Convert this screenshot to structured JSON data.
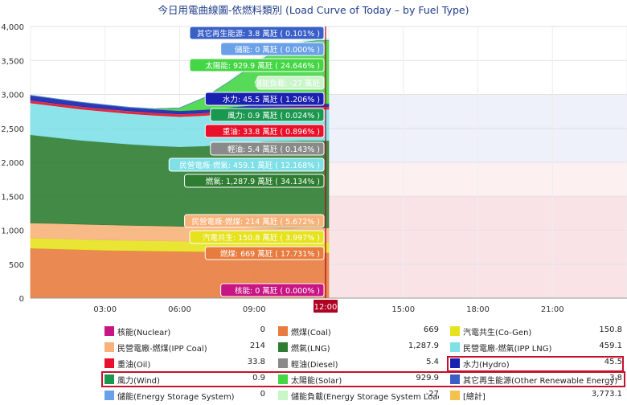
{
  "title": "今日用電曲線圖-依燃料類別 (Load Curve of Today – by Fuel Type)",
  "chart_data": {
    "type": "area",
    "stacked": true,
    "title": "今日用電曲線圖-依燃料類別 (Load Curve of Today – by Fuel Type)",
    "y_unit": "萬瓩",
    "ylim": [
      0,
      4000
    ],
    "y_ticks": [
      "0",
      "500",
      "1,000",
      "1,500",
      "2,000",
      "2,500",
      "3,000",
      "3,500",
      "4,000"
    ],
    "x_range_hours": [
      0,
      24
    ],
    "x_ticks": [
      "03:00",
      "06:00",
      "09:00",
      "12:00",
      "15:00",
      "18:00",
      "21:00"
    ],
    "current_time_label": "12:00",
    "x_hours": [
      0,
      1,
      2,
      3,
      4,
      5,
      6,
      7,
      8,
      9,
      9.5,
      10,
      10.5,
      11,
      11.5,
      12
    ],
    "series": [
      {
        "name": "核能(Nuclear)",
        "color": "#c71585",
        "values": [
          0,
          0,
          0,
          0,
          0,
          0,
          0,
          0,
          0,
          0,
          0,
          0,
          0,
          0,
          0,
          0
        ]
      },
      {
        "name": "燃煤(Coal)",
        "color": "#e87c3e",
        "values": [
          735,
          725,
          715,
          705,
          700,
          695,
          690,
          685,
          678,
          672,
          670,
          668,
          668,
          669,
          669,
          669
        ]
      },
      {
        "name": "汽電共生(Co-Gen)",
        "color": "#e6e21e",
        "values": [
          150,
          150,
          150,
          150,
          150,
          150,
          150,
          150,
          150,
          150,
          150,
          150,
          150,
          151,
          151,
          151
        ]
      },
      {
        "name": "民營電廠-燃煤(IPP Coal)",
        "color": "#f7b27a",
        "values": [
          220,
          225,
          225,
          225,
          222,
          220,
          218,
          215,
          215,
          214,
          214,
          214,
          214,
          214,
          214,
          214
        ]
      },
      {
        "name": "燃氣(LNG)",
        "color": "#2e7d32",
        "values": [
          1300,
          1265,
          1235,
          1215,
          1195,
          1180,
          1170,
          1190,
          1225,
          1265,
          1278,
          1282,
          1285,
          1287,
          1288,
          1288
        ]
      },
      {
        "name": "民營電廠-燃氣(IPP LNG)",
        "color": "#7fe0e8",
        "values": [
          470,
          465,
          460,
          455,
          450,
          448,
          445,
          450,
          455,
          458,
          459,
          459,
          459,
          459,
          459,
          459
        ]
      },
      {
        "name": "重油(Oil)",
        "color": "#e8102a",
        "values": [
          34,
          34,
          34,
          34,
          34,
          34,
          34,
          34,
          34,
          34,
          34,
          34,
          34,
          34,
          34,
          34
        ]
      },
      {
        "name": "輕油(Diesel)",
        "color": "#8a8a8a",
        "values": [
          5,
          5,
          5,
          5,
          5,
          5,
          5,
          5,
          5,
          5,
          5,
          5,
          5,
          5,
          5,
          5
        ]
      },
      {
        "name": "水力(Hydro)",
        "color": "#1a20b0",
        "values": [
          70,
          65,
          60,
          55,
          50,
          48,
          46,
          45,
          45,
          45,
          45,
          45,
          45,
          45,
          45,
          45
        ]
      },
      {
        "name": "風力(Wind)",
        "color": "#1a9850",
        "values": [
          1,
          1,
          1,
          1,
          1,
          1,
          1,
          1,
          1,
          1,
          1,
          1,
          1,
          1,
          1,
          1
        ]
      },
      {
        "name": "太陽能(Solar)",
        "color": "#45d645",
        "values": [
          0,
          0,
          0,
          0,
          0,
          5,
          40,
          180,
          380,
          600,
          700,
          800,
          860,
          905,
          925,
          930
        ]
      },
      {
        "name": "其它再生能源(Other Renewable Energy)",
        "color": "#3a60c8",
        "values": [
          4,
          4,
          4,
          4,
          4,
          4,
          4,
          4,
          4,
          4,
          4,
          4,
          4,
          4,
          4,
          4
        ]
      },
      {
        "name": "儲能(Energy Storage System)",
        "color": "#6aa0e8",
        "values": [
          0,
          0,
          0,
          0,
          0,
          0,
          0,
          0,
          0,
          0,
          0,
          0,
          0,
          0,
          0,
          0
        ]
      }
    ],
    "storage_load": {
      "name": "儲能負載(Energy Storage System Load)",
      "color": "#c9f5c9",
      "values": [
        0,
        0,
        0,
        0,
        0,
        0,
        0,
        -5,
        -20,
        -35,
        -30,
        -30,
        -28,
        -27,
        -27,
        -27
      ]
    }
  },
  "tooltip": {
    "items": [
      {
        "text": "其它再生能源: 3.8 萬瓩 ( 0.101% )",
        "color": "#3a60c8",
        "text_color": "#ffffff"
      },
      {
        "text": "儲能: 0 萬瓩 ( 0.000% )",
        "color": "#6aa0e8",
        "text_color": "#ffffff"
      },
      {
        "text": "太陽能: 929.9 萬瓩 ( 24.646% )",
        "color": "#45d645",
        "text_color": "#ffffff"
      },
      {
        "text": "儲能負載: -27 萬瓩",
        "color": "#c9f5c9",
        "text_color": "#ffffff"
      },
      {
        "text": "水力: 45.5 萬瓩 ( 1.206% )",
        "color": "#1a20b0",
        "text_color": "#ffffff"
      },
      {
        "text": "風力: 0.9 萬瓩 ( 0.024% )",
        "color": "#1a9850",
        "text_color": "#ffffff"
      },
      {
        "text": "重油: 33.8 萬瓩 ( 0.896% )",
        "color": "#e8102a",
        "text_color": "#ffffff"
      },
      {
        "text": "輕油: 5.4 萬瓩 ( 0.143% )",
        "color": "#8a8a8a",
        "text_color": "#ffffff"
      },
      {
        "text": "民營電廠-燃氣: 459.1 萬瓩 ( 12.168% )",
        "color": "#7fe0e8",
        "text_color": "#ffffff"
      },
      {
        "text": "燃氣: 1,287.9 萬瓩 ( 34.134% )",
        "color": "#2e7d32",
        "text_color": "#ffffff"
      },
      {
        "text": "民營電廠-燃煤: 214 萬瓩 ( 5.672% )",
        "color": "#f7b27a",
        "text_color": "#ffffff"
      },
      {
        "text": "汽電共生: 150.8 萬瓩 ( 3.997% )",
        "color": "#e6e21e",
        "text_color": "#ffffff"
      },
      {
        "text": "燃煤: 669 萬瓩 ( 17.731% )",
        "color": "#e87c3e",
        "text_color": "#ffffff"
      },
      {
        "text": "核能: 0 萬瓩 ( 0.000% )",
        "color": "#c71585",
        "text_color": "#ffffff"
      }
    ]
  },
  "legend": {
    "items": [
      {
        "name": "核能(Nuclear)",
        "value": "0",
        "color": "#c71585"
      },
      {
        "name": "燃煤(Coal)",
        "value": "669",
        "color": "#e87c3e"
      },
      {
        "name": "汽電共生(Co-Gen)",
        "value": "150.8",
        "color": "#e6e21e"
      },
      {
        "name": "民營電廠-燃煤(IPP Coal)",
        "value": "214",
        "color": "#f7b27a"
      },
      {
        "name": "燃氣(LNG)",
        "value": "1,287.9",
        "color": "#2e7d32"
      },
      {
        "name": "民營電廠-燃氣(IPP LNG)",
        "value": "459.1",
        "color": "#7fe0e8"
      },
      {
        "name": "重油(Oil)",
        "value": "33.8",
        "color": "#e8102a"
      },
      {
        "name": "輕油(Diesel)",
        "value": "5.4",
        "color": "#8a8a8a"
      },
      {
        "name": "水力(Hydro)",
        "value": "45.5",
        "color": "#1a20b0"
      },
      {
        "name": "風力(Wind)",
        "value": "0.9",
        "color": "#1a9850"
      },
      {
        "name": "太陽能(Solar)",
        "value": "929.9",
        "color": "#45d645"
      },
      {
        "name": "其它再生能源(Other Renewable Energy)",
        "value": "3.8",
        "color": "#3a60c8"
      },
      {
        "name": "儲能(Energy Storage System)",
        "value": "0",
        "color": "#6aa0e8"
      },
      {
        "name": "儲能負載(Energy Storage System Load)",
        "value": "-27",
        "color": "#c9f5c9"
      },
      {
        "name": "[總計]",
        "value": "3,773.1",
        "color": "#f2c14e"
      }
    ]
  }
}
